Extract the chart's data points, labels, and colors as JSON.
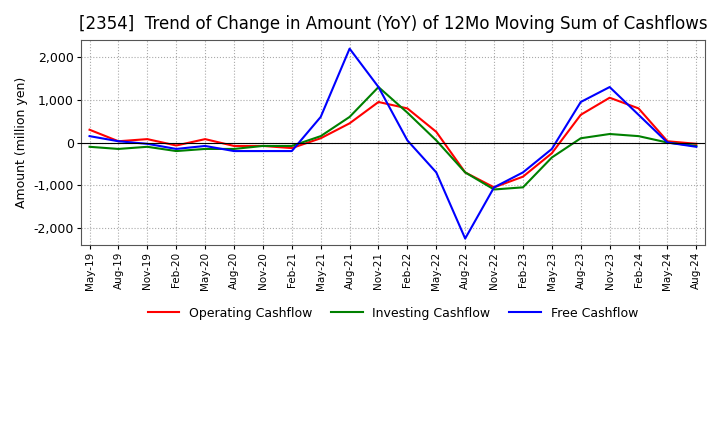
{
  "title": "[2354]  Trend of Change in Amount (YoY) of 12Mo Moving Sum of Cashflows",
  "ylabel": "Amount (million yen)",
  "ylim": [
    -2400,
    2400
  ],
  "yticks": [
    -2000,
    -1000,
    0,
    1000,
    2000
  ],
  "x_labels": [
    "May-19",
    "Aug-19",
    "Nov-19",
    "Feb-20",
    "May-20",
    "Aug-20",
    "Nov-20",
    "Feb-21",
    "May-21",
    "Aug-21",
    "Nov-21",
    "Feb-22",
    "May-22",
    "Aug-22",
    "Nov-22",
    "Feb-23",
    "May-23",
    "Aug-23",
    "Nov-23",
    "Feb-24",
    "May-24",
    "Aug-24"
  ],
  "operating_cashflow": [
    300,
    30,
    80,
    -70,
    80,
    -80,
    -80,
    -130,
    100,
    450,
    950,
    800,
    250,
    -700,
    -1050,
    -800,
    -250,
    650,
    1050,
    800,
    30,
    -30
  ],
  "investing_cashflow": [
    -100,
    -150,
    -100,
    -200,
    -150,
    -150,
    -80,
    -80,
    150,
    600,
    1300,
    700,
    50,
    -700,
    -1100,
    -1050,
    -350,
    100,
    200,
    150,
    0,
    -80
  ],
  "free_cashflow": [
    150,
    30,
    -30,
    -150,
    -80,
    -200,
    -200,
    -200,
    600,
    2200,
    1300,
    50,
    -700,
    -2250,
    -1050,
    -700,
    -150,
    950,
    1300,
    650,
    0,
    -100
  ],
  "operating_color": "#ff0000",
  "investing_color": "#008000",
  "free_color": "#0000ff",
  "background_color": "#ffffff",
  "grid_color": "#aaaaaa",
  "title_fontsize": 12,
  "axis_fontsize": 9,
  "legend_fontsize": 9
}
